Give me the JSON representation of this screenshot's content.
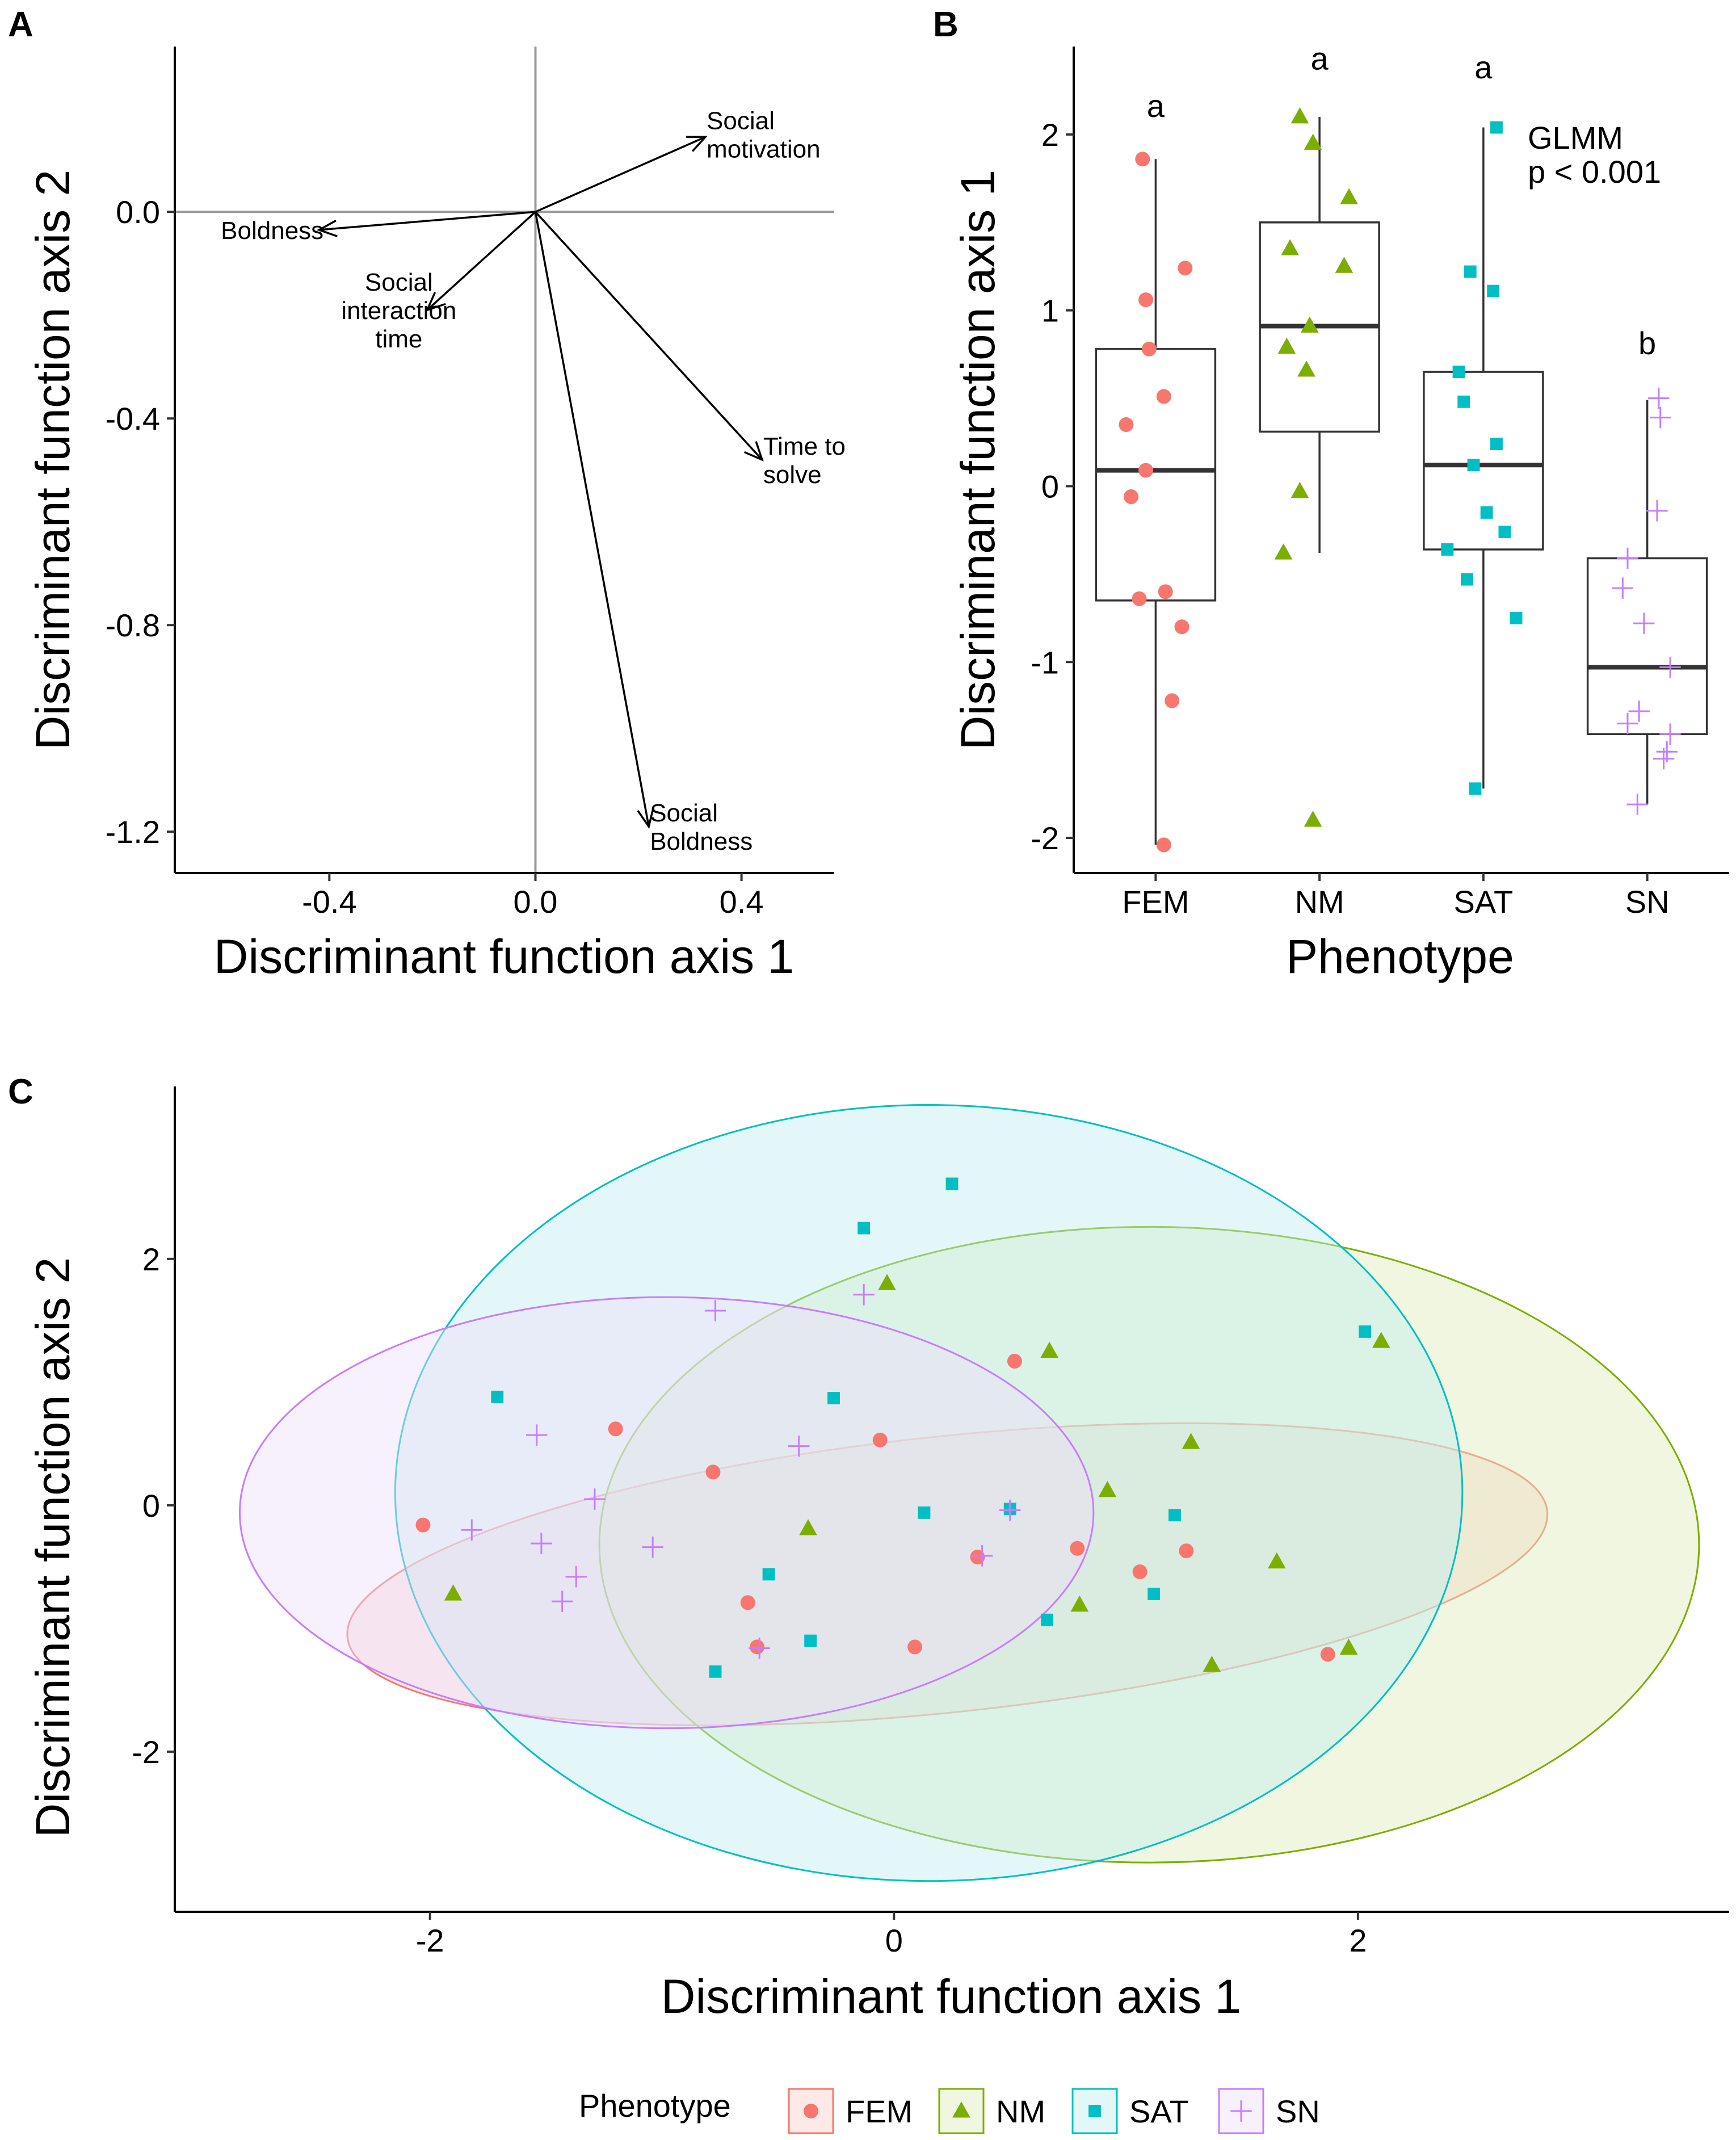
{
  "chart_data": [
    {
      "panel": "A",
      "type": "biplot",
      "xlabel": "Discriminant function axis 1",
      "ylabel": "Discriminant function axis 2",
      "xlim": [
        -0.7,
        0.58
      ],
      "ylim": [
        -1.28,
        0.32
      ],
      "xticks": [
        -0.4,
        0.0,
        0.4
      ],
      "xtick_labels": [
        "-0.4",
        "0.0",
        "0.4"
      ],
      "yticks": [
        0.0,
        -0.4,
        -0.8,
        -1.2
      ],
      "ytick_labels": [
        "0.0",
        "-0.4",
        "-0.8",
        "-1.2"
      ],
      "reference_lines": {
        "x": 0,
        "y": 0
      },
      "arrows": [
        {
          "label": [
            "Social",
            "motivation"
          ],
          "x": 0.33,
          "y": 0.145,
          "anchor": "start",
          "align": "above"
        },
        {
          "label": [
            "Boldness"
          ],
          "x": -0.42,
          "y": -0.035,
          "anchor": "end",
          "align": "left"
        },
        {
          "label": [
            "Social",
            "interaction",
            "time"
          ],
          "x": -0.21,
          "y": -0.19,
          "anchor": "end",
          "align": "stack"
        },
        {
          "label": [
            "Time to",
            "solve"
          ],
          "x": 0.44,
          "y": -0.48,
          "anchor": "start",
          "align": "stack"
        },
        {
          "label": [
            "Social",
            "Boldness"
          ],
          "x": 0.22,
          "y": -1.19,
          "anchor": "start",
          "align": "stack"
        }
      ]
    },
    {
      "panel": "B",
      "type": "box",
      "xlabel": "Phenotype",
      "ylabel": "Discriminant function axis 1",
      "categories": [
        "FEM",
        "NM",
        "SAT",
        "SN"
      ],
      "ylim": [
        -2.2,
        2.5
      ],
      "yticks": [
        2,
        1,
        0,
        -1,
        -2
      ],
      "ytick_labels": [
        "2",
        "1",
        "0",
        "-1",
        "-2"
      ],
      "annotation": [
        "GLMM",
        "p < 0.001"
      ],
      "groups": [
        {
          "name": "FEM",
          "letter": "a",
          "letter_y": 2.1,
          "color": "#F8766D",
          "shape": "circle",
          "box": {
            "whisker_low": -2.04,
            "q1": -0.65,
            "median": 0.09,
            "q3": 0.78,
            "whisker_high": 1.86
          },
          "points": [
            [
              -0.08,
              1.86
            ],
            [
              0.18,
              1.24
            ],
            [
              -0.06,
              1.06
            ],
            [
              -0.04,
              0.78
            ],
            [
              0.05,
              0.51
            ],
            [
              -0.18,
              0.35
            ],
            [
              -0.06,
              0.09
            ],
            [
              -0.15,
              -0.06
            ],
            [
              0.06,
              -0.6
            ],
            [
              -0.1,
              -0.64
            ],
            [
              0.16,
              -0.8
            ],
            [
              0.1,
              -1.22
            ],
            [
              0.05,
              -2.04
            ]
          ]
        },
        {
          "name": "NM",
          "letter": "a",
          "letter_y": 2.37,
          "color": "#7CAE00",
          "shape": "triangle",
          "box": {
            "whisker_low": -0.38,
            "q1": 0.31,
            "median": 0.91,
            "q3": 1.5,
            "whisker_high": 2.1
          },
          "points": [
            [
              -0.12,
              2.1
            ],
            [
              -0.04,
              1.95
            ],
            [
              0.18,
              1.64
            ],
            [
              -0.18,
              1.35
            ],
            [
              0.15,
              1.25
            ],
            [
              -0.06,
              0.91
            ],
            [
              -0.2,
              0.79
            ],
            [
              -0.08,
              0.66
            ],
            [
              -0.12,
              -0.03
            ],
            [
              -0.22,
              -0.38
            ],
            [
              -0.04,
              -1.9
            ]
          ]
        },
        {
          "name": "SAT",
          "letter": "a",
          "letter_y": 2.32,
          "color": "#00BFC4",
          "shape": "square",
          "box": {
            "whisker_low": -1.72,
            "q1": -0.36,
            "median": 0.12,
            "q3": 0.65,
            "whisker_high": 2.04
          },
          "points": [
            [
              0.08,
              2.04
            ],
            [
              -0.08,
              1.22
            ],
            [
              0.06,
              1.11
            ],
            [
              -0.15,
              0.65
            ],
            [
              -0.12,
              0.48
            ],
            [
              0.08,
              0.24
            ],
            [
              -0.06,
              0.12
            ],
            [
              0.02,
              -0.15
            ],
            [
              0.13,
              -0.26
            ],
            [
              -0.22,
              -0.36
            ],
            [
              -0.1,
              -0.53
            ],
            [
              0.2,
              -0.75
            ],
            [
              -0.05,
              -1.72
            ]
          ]
        },
        {
          "name": "SN",
          "letter": "b",
          "letter_y": 0.75,
          "color": "#C77CFF",
          "shape": "plus",
          "box": {
            "whisker_low": -1.81,
            "q1": -1.41,
            "median": -1.03,
            "q3": -0.41,
            "whisker_high": 0.49
          },
          "points": [
            [
              0.07,
              0.5
            ],
            [
              0.08,
              0.39
            ],
            [
              0.06,
              -0.14
            ],
            [
              -0.12,
              -0.41
            ],
            [
              -0.15,
              -0.58
            ],
            [
              -0.02,
              -0.78
            ],
            [
              0.14,
              -1.03
            ],
            [
              -0.05,
              -1.28
            ],
            [
              -0.12,
              -1.35
            ],
            [
              0.14,
              -1.41
            ],
            [
              0.12,
              -1.51
            ],
            [
              0.1,
              -1.55
            ],
            [
              -0.06,
              -1.81
            ]
          ]
        }
      ]
    },
    {
      "panel": "C",
      "type": "scatter",
      "xlabel": "Discriminant function axis 1",
      "ylabel": "Discriminant function axis 2",
      "xlim": [
        -3.1,
        3.6
      ],
      "ylim": [
        -3.3,
        3.4
      ],
      "xticks": [
        -2,
        0,
        2
      ],
      "xtick_labels": [
        "-2",
        "0",
        "2"
      ],
      "yticks": [
        2,
        0,
        -2
      ],
      "ytick_labels": [
        "2",
        "0",
        "-2"
      ],
      "legend_title": "Phenotype",
      "series": [
        {
          "name": "FEM",
          "color": "#F8766D",
          "fill": "#FAD1CD",
          "shape": "circle",
          "ellipse": {
            "cx": 0.23,
            "cy": -0.56,
            "rx": 2.6,
            "ry": 1.12,
            "angle_deg": -6
          },
          "points": [
            [
              -2.03,
              -0.16
            ],
            [
              -1.2,
              0.62
            ],
            [
              -0.78,
              0.27
            ],
            [
              -0.06,
              0.53
            ],
            [
              0.52,
              1.17
            ],
            [
              -0.63,
              -0.79
            ],
            [
              -0.59,
              -1.15
            ],
            [
              0.09,
              -1.15
            ],
            [
              0.36,
              -0.42
            ],
            [
              0.79,
              -0.35
            ],
            [
              1.06,
              -0.54
            ],
            [
              1.26,
              -0.37
            ],
            [
              1.87,
              -1.21
            ]
          ]
        },
        {
          "name": "NM",
          "color": "#7CAE00",
          "fill": "#DDEBB8",
          "shape": "triangle",
          "ellipse": {
            "cx": 1.1,
            "cy": -0.32,
            "rx": 2.37,
            "ry": 2.58,
            "angle_deg": 0
          },
          "points": [
            [
              -1.9,
              -0.72
            ],
            [
              -0.03,
              1.8
            ],
            [
              0.67,
              1.25
            ],
            [
              2.1,
              1.33
            ],
            [
              -0.37,
              -0.19
            ],
            [
              0.92,
              0.12
            ],
            [
              1.28,
              0.51
            ],
            [
              0.8,
              -0.81
            ],
            [
              1.65,
              -0.46
            ],
            [
              1.96,
              -1.16
            ],
            [
              1.37,
              -1.3
            ]
          ]
        },
        {
          "name": "SAT",
          "color": "#00BFC4",
          "fill": "#C2EEEF",
          "shape": "square",
          "ellipse": {
            "cx": 0.15,
            "cy": 0.1,
            "rx": 2.3,
            "ry": 3.15,
            "angle_deg": 0
          },
          "points": [
            [
              -1.71,
              0.88
            ],
            [
              -0.13,
              2.25
            ],
            [
              0.25,
              2.61
            ],
            [
              -0.26,
              0.87
            ],
            [
              2.03,
              1.41
            ],
            [
              0.13,
              -0.06
            ],
            [
              0.5,
              -0.03
            ],
            [
              1.21,
              -0.08
            ],
            [
              1.12,
              -0.72
            ],
            [
              -0.54,
              -0.56
            ],
            [
              0.66,
              -0.93
            ],
            [
              -0.36,
              -1.1
            ],
            [
              -0.77,
              -1.35
            ]
          ]
        },
        {
          "name": "SN",
          "color": "#C77CFF",
          "fill": "#EEDDFA",
          "shape": "plus",
          "ellipse": {
            "cx": -0.98,
            "cy": -0.06,
            "rx": 1.84,
            "ry": 1.75,
            "angle_deg": 0
          },
          "points": [
            [
              -0.77,
              1.58
            ],
            [
              -0.13,
              1.71
            ],
            [
              -1.54,
              0.57
            ],
            [
              -0.41,
              0.48
            ],
            [
              -1.29,
              0.05
            ],
            [
              -1.82,
              -0.2
            ],
            [
              -1.52,
              -0.31
            ],
            [
              -1.04,
              -0.34
            ],
            [
              -1.37,
              -0.58
            ],
            [
              -1.43,
              -0.78
            ],
            [
              0.5,
              -0.04
            ],
            [
              0.38,
              -0.41
            ],
            [
              -0.58,
              -1.16
            ]
          ]
        }
      ]
    }
  ]
}
